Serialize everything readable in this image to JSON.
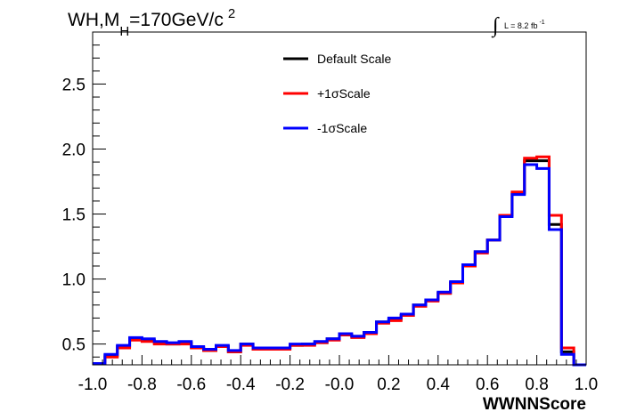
{
  "title": {
    "main": "WH,M",
    "sub": "H",
    "rest": "=170GeV/c",
    "sup": "2"
  },
  "luminosity": {
    "integral": "∫",
    "text": "L = 8.2 fb",
    "sup": "-1"
  },
  "chart_data": {
    "type": "line",
    "style": "step-histogram",
    "xlabel": "WWNNScore",
    "ylabel": "",
    "xlim": [
      -1.0,
      1.0
    ],
    "ylim": [
      0.34,
      2.9
    ],
    "x_ticks": [
      -1.0,
      -0.8,
      -0.6,
      -0.4,
      -0.2,
      0.0,
      0.2,
      0.4,
      0.6,
      0.8,
      1.0
    ],
    "x_tick_labels": [
      "-1.0",
      "-0.8",
      "-0.6",
      "-0.4",
      "-0.2",
      "-0.0",
      "0.2",
      "0.4",
      "0.6",
      "0.8",
      "1.0"
    ],
    "y_ticks": [
      0.5,
      1.0,
      1.5,
      2.0,
      2.5
    ],
    "y_tick_labels": [
      "0.5",
      "1.0",
      "1.5",
      "2.0",
      "2.5"
    ],
    "grid": false,
    "legend_position": "top-center",
    "bin_edges": [
      -1.0,
      -0.95,
      -0.9,
      -0.85,
      -0.8,
      -0.75,
      -0.7,
      -0.65,
      -0.6,
      -0.55,
      -0.5,
      -0.45,
      -0.4,
      -0.35,
      -0.3,
      -0.25,
      -0.2,
      -0.15,
      -0.1,
      -0.05,
      0.0,
      0.05,
      0.1,
      0.15,
      0.2,
      0.25,
      0.3,
      0.35,
      0.4,
      0.45,
      0.5,
      0.55,
      0.6,
      0.65,
      0.7,
      0.75,
      0.8,
      0.85,
      0.9,
      0.95,
      1.0
    ],
    "series": [
      {
        "name": "Default Scale",
        "color": "#000000",
        "values": [
          0.35,
          0.41,
          0.48,
          0.54,
          0.53,
          0.51,
          0.5,
          0.51,
          0.47,
          0.45,
          0.48,
          0.44,
          0.5,
          0.46,
          0.46,
          0.47,
          0.49,
          0.5,
          0.51,
          0.54,
          0.57,
          0.56,
          0.59,
          0.67,
          0.69,
          0.72,
          0.8,
          0.84,
          0.89,
          0.97,
          1.1,
          1.21,
          1.3,
          1.49,
          1.66,
          1.91,
          1.91,
          1.42,
          0.44,
          0.34
        ]
      },
      {
        "name": "+1σScale",
        "color": "#ff0000",
        "values": [
          0.35,
          0.4,
          0.47,
          0.53,
          0.52,
          0.5,
          0.5,
          0.5,
          0.47,
          0.45,
          0.48,
          0.44,
          0.49,
          0.46,
          0.46,
          0.46,
          0.49,
          0.49,
          0.51,
          0.53,
          0.57,
          0.55,
          0.58,
          0.66,
          0.68,
          0.72,
          0.79,
          0.83,
          0.89,
          0.97,
          1.1,
          1.2,
          1.3,
          1.49,
          1.67,
          1.93,
          1.94,
          1.49,
          0.47,
          0.34
        ]
      },
      {
        "name": "-1σScale",
        "color": "#0000ff",
        "values": [
          0.35,
          0.42,
          0.49,
          0.55,
          0.54,
          0.52,
          0.51,
          0.52,
          0.48,
          0.46,
          0.49,
          0.45,
          0.5,
          0.47,
          0.47,
          0.47,
          0.5,
          0.5,
          0.52,
          0.54,
          0.58,
          0.56,
          0.59,
          0.67,
          0.7,
          0.73,
          0.8,
          0.84,
          0.9,
          0.98,
          1.11,
          1.21,
          1.3,
          1.48,
          1.65,
          1.88,
          1.85,
          1.38,
          0.42,
          0.34
        ]
      }
    ]
  }
}
